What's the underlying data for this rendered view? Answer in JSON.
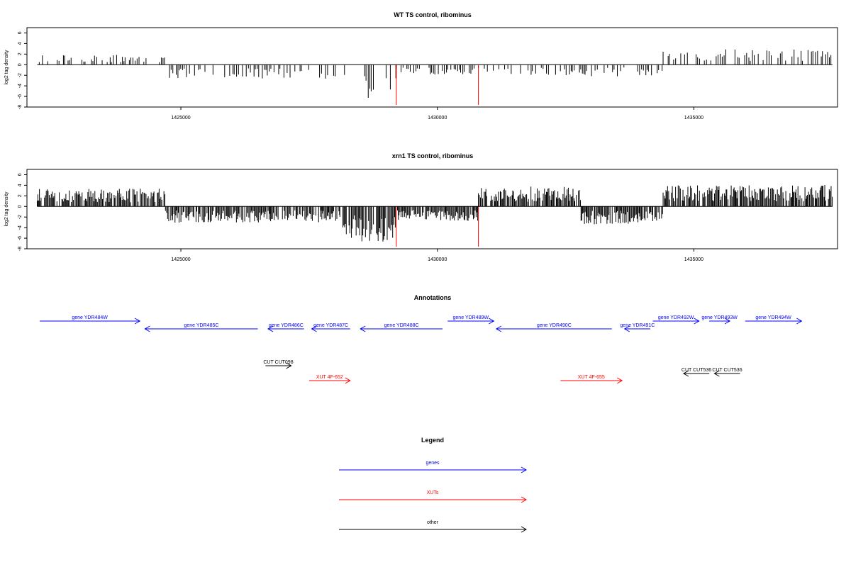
{
  "colors": {
    "genes": "#0000ff",
    "xuts": "#ff0000",
    "other": "#000000",
    "highlight": "#ff0000"
  },
  "chart_data": [
    {
      "type": "bar",
      "title": "WT TS control, ribominus",
      "ylabel": "log2 tag density",
      "xlim": [
        1422000,
        1437800
      ],
      "ylim": [
        -8,
        7
      ],
      "xticks": [
        "1425000",
        "1430000",
        "1435000"
      ],
      "yticks": [
        "6",
        "4",
        "2",
        "0",
        "-2",
        "-4",
        "-6",
        "-8"
      ],
      "highlight_x": [
        1429200,
        1430800
      ],
      "highlight_range": [
        -7.6,
        0
      ],
      "profile": [
        {
          "x": [
            1422200,
            1424700
          ],
          "y": 1.1
        },
        {
          "x": [
            1424700,
            1428100
          ],
          "y": -1.6
        },
        {
          "x": [
            1428100,
            1429200
          ],
          "y": -3.8
        },
        {
          "x": [
            1429200,
            1430800
          ],
          "y": -1.1
        },
        {
          "x": [
            1430800,
            1434400
          ],
          "y": -1.3
        },
        {
          "x": [
            1434400,
            1437700
          ],
          "y": 1.7
        }
      ]
    },
    {
      "type": "bar",
      "title": "xrn1 TS control, ribominus",
      "ylabel": "log2 tag density",
      "xlim": [
        1422000,
        1437800
      ],
      "ylim": [
        -8,
        7
      ],
      "xticks": [
        "1425000",
        "1430000",
        "1435000"
      ],
      "yticks": [
        "6",
        "4",
        "2",
        "0",
        "-2",
        "-4",
        "-6",
        "-8"
      ],
      "highlight_x": [
        1429200,
        1430800
      ],
      "highlight_range": [
        -7.6,
        0
      ],
      "profile": [
        {
          "x": [
            1422200,
            1424700
          ],
          "y": 2.0
        },
        {
          "x": [
            1424700,
            1428100
          ],
          "y": -1.8
        },
        {
          "x": [
            1428100,
            1429200
          ],
          "y": -4.0
        },
        {
          "x": [
            1429200,
            1430800
          ],
          "y": -1.6
        },
        {
          "x": [
            1430800,
            1432800
          ],
          "y": 2.2
        },
        {
          "x": [
            1432800,
            1434400
          ],
          "y": -2.0
        },
        {
          "x": [
            1434400,
            1437700
          ],
          "y": 2.4
        }
      ]
    }
  ],
  "annotations": {
    "title": "Annotations",
    "genes": [
      {
        "label": "gene YDR484W",
        "dir": "right",
        "start": 1422250,
        "end": 1424200,
        "row": 0
      },
      {
        "label": "gene YDR485C",
        "dir": "left",
        "start": 1424300,
        "end": 1426500,
        "row": 1
      },
      {
        "label": "gene YDR486C",
        "dir": "left",
        "start": 1426700,
        "end": 1427400,
        "row": 1
      },
      {
        "label": "gene YDR487C",
        "dir": "left",
        "start": 1427550,
        "end": 1428300,
        "row": 1
      },
      {
        "label": "gene YDR488C",
        "dir": "left",
        "start": 1428500,
        "end": 1430100,
        "row": 1
      },
      {
        "label": "gene YDR489W",
        "dir": "right",
        "start": 1430200,
        "end": 1431100,
        "row": 0
      },
      {
        "label": "gene YDR490C",
        "dir": "left",
        "start": 1431150,
        "end": 1433400,
        "row": 1
      },
      {
        "label": "gene YDR491C",
        "dir": "left",
        "start": 1433650,
        "end": 1434150,
        "row": 1
      },
      {
        "label": "gene YDR492W",
        "dir": "right",
        "start": 1434200,
        "end": 1435100,
        "row": 0
      },
      {
        "label": "gene YDR493W",
        "dir": "right",
        "start": 1435300,
        "end": 1435700,
        "row": 0
      },
      {
        "label": "gene YDR494W",
        "dir": "right",
        "start": 1436000,
        "end": 1437100,
        "row": 0
      }
    ],
    "xuts": [
      {
        "label": "XUT 4F-652",
        "dir": "right",
        "start": 1427500,
        "end": 1428300
      },
      {
        "label": "XUT 4F-655",
        "dir": "right",
        "start": 1432400,
        "end": 1433600
      }
    ],
    "other": [
      {
        "label": "CUT CUT098",
        "dir": "right",
        "start": 1426650,
        "end": 1427150,
        "row": 0
      },
      {
        "label": "CUT CUT536",
        "dir": "left",
        "start": 1434800,
        "end": 1435300,
        "row": 1
      },
      {
        "label": "CUT CUT536",
        "dir": "left",
        "start": 1435400,
        "end": 1435900,
        "row": 1
      }
    ]
  },
  "legend": {
    "title": "Legend",
    "items": [
      {
        "label": "genes",
        "color": "#0000ff"
      },
      {
        "label": "XUTs",
        "color": "#ff0000"
      },
      {
        "label": "other",
        "color": "#000000"
      }
    ]
  }
}
